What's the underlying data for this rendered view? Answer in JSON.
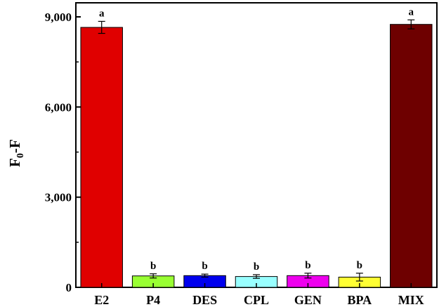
{
  "chart_data": {
    "type": "bar",
    "categories": [
      "E2",
      "P4",
      "DES",
      "CPL",
      "GEN",
      "BPA",
      "MIX"
    ],
    "values": [
      8650,
      380,
      390,
      360,
      390,
      340,
      8750
    ],
    "errors": [
      200,
      70,
      50,
      60,
      80,
      130,
      150
    ],
    "significance": [
      "a",
      "b",
      "b",
      "b",
      "b",
      "b",
      "a"
    ],
    "colors": [
      "#E00000",
      "#99FF33",
      "#0000EE",
      "#99FFFF",
      "#EE00EE",
      "#FFFF33",
      "#6E0000"
    ],
    "ylabel": {
      "main": "F",
      "sub": "0",
      "tail": "-F"
    },
    "ylim": [
      0,
      9000
    ],
    "yticks": [
      0,
      3000,
      6000,
      9000
    ],
    "ytick_labels": [
      "0",
      "3,000",
      "6,000",
      "9,000"
    ],
    "grid": false
  }
}
